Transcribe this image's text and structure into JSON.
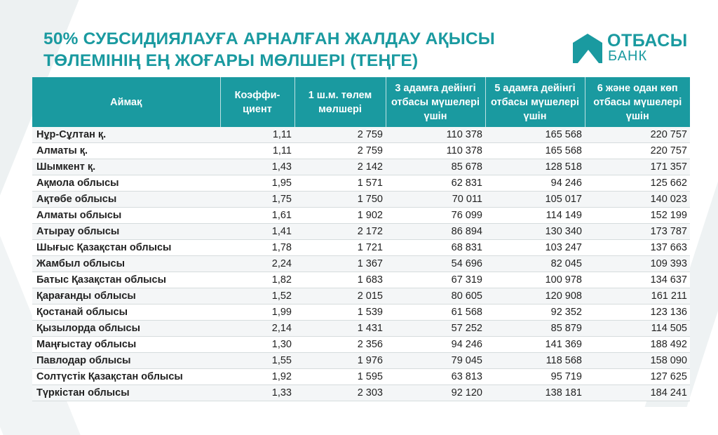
{
  "title": {
    "line1": "50% СУБСИДИЯЛАУҒА АРНАЛҒАН ЖАЛДАУ АҚЫСЫ",
    "line2": "ТӨЛЕМІНІҢ ЕҢ ЖОҒАРЫ МӨЛШЕРІ (ТЕҢГЕ)"
  },
  "logo": {
    "name": "ОТБАСЫ",
    "sub": "БАНК"
  },
  "colors": {
    "accent": "#1a9aa0",
    "row_alt": "#f4f6f7"
  },
  "table": {
    "headers": [
      "Аймақ",
      "Коэффи- циент",
      "1 ш.м. төлем мөлшері",
      "3 адамға дейінгі отбасы мүшелері үшін",
      "5 адамға дейінгі отбасы мүшелері үшін",
      "6 және одан көп отбасы мүшелері үшін"
    ],
    "rows": [
      [
        "Нұр-Сұлтан қ.",
        "1,11",
        "2 759",
        "110 378",
        "165 568",
        "220 757"
      ],
      [
        "Алматы қ.",
        "1,11",
        "2 759",
        "110 378",
        "165 568",
        "220 757"
      ],
      [
        "Шымкент қ.",
        "1,43",
        "2 142",
        "85 678",
        "128 518",
        "171 357"
      ],
      [
        "Ақмола облысы",
        "1,95",
        "1 571",
        "62 831",
        "94 246",
        "125 662"
      ],
      [
        "Ақтөбе облысы",
        "1,75",
        "1 750",
        "70 011",
        "105 017",
        "140 023"
      ],
      [
        "Алматы облысы",
        "1,61",
        "1 902",
        "76 099",
        "114 149",
        "152 199"
      ],
      [
        "Атырау облысы",
        "1,41",
        "2 172",
        "86 894",
        "130 340",
        "173 787"
      ],
      [
        "Шығыс Қазақстан облысы",
        "1,78",
        "1 721",
        "68 831",
        "103 247",
        "137 663"
      ],
      [
        "Жамбыл облысы",
        "2,24",
        "1 367",
        "54 696",
        "82 045",
        "109 393"
      ],
      [
        "Батыс Қазақстан облысы",
        "1,82",
        "1 683",
        "67 319",
        "100 978",
        "134 637"
      ],
      [
        "Қарағанды облысы",
        "1,52",
        "2 015",
        "80 605",
        "120 908",
        "161 211"
      ],
      [
        "Қостанай облысы",
        "1,99",
        "1 539",
        "61 568",
        "92 352",
        "123 136"
      ],
      [
        "Қызылорда облысы",
        "2,14",
        "1 431",
        "57 252",
        "85 879",
        "114 505"
      ],
      [
        "Маңғыстау облысы",
        "1,30",
        "2 356",
        "94 246",
        "141 369",
        "188 492"
      ],
      [
        "Павлодар облысы",
        "1,55",
        "1 976",
        "79 045",
        "118 568",
        "158 090"
      ],
      [
        "Солтүстік Қазақстан облысы",
        "1,92",
        "1 595",
        "63 813",
        "95 719",
        "127 625"
      ],
      [
        "Түркістан облысы",
        "1,33",
        "2 303",
        "92 120",
        "138 181",
        "184 241"
      ]
    ]
  }
}
